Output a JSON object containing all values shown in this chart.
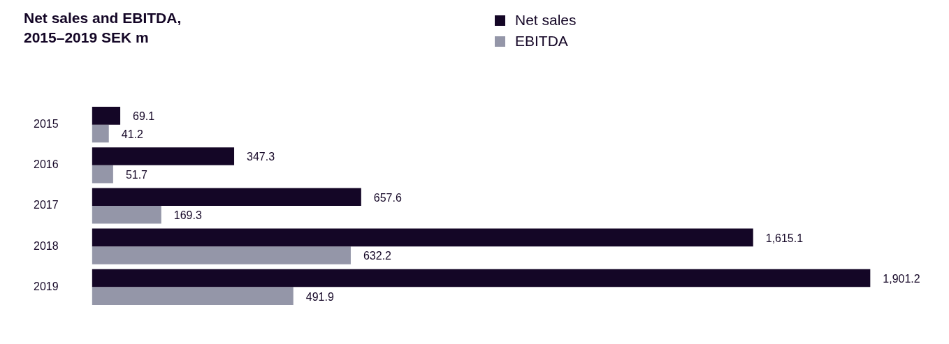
{
  "chart_data": {
    "type": "bar",
    "orientation": "horizontal",
    "title": "Net sales and EBITDA,\n2015–2019 SEK m",
    "categories": [
      "2015",
      "2016",
      "2017",
      "2018",
      "2019"
    ],
    "legend": "top",
    "series": [
      {
        "name": "Net sales",
        "color": "#140626",
        "values": [
          69.1,
          347.3,
          657.6,
          1615.1,
          1901.2
        ],
        "value_labels": [
          "69.1",
          "347.3",
          "657.6",
          "1,615.1",
          "1,901.2"
        ]
      },
      {
        "name": "EBITDA",
        "color": "#9496a8",
        "values": [
          41.2,
          51.7,
          169.3,
          632.2,
          491.9
        ],
        "value_labels": [
          "41.2",
          "51.7",
          "169.3",
          "632.2",
          "491.9"
        ]
      }
    ]
  }
}
